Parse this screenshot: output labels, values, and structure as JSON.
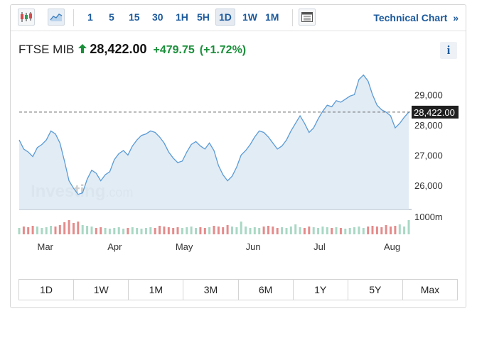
{
  "toolbar": {
    "icons": [
      "candlestick-icon",
      "area-chart-icon",
      "chart-settings-icon"
    ],
    "timeframes": [
      "1",
      "5",
      "15",
      "30",
      "1H",
      "5H",
      "1D",
      "1W",
      "1M"
    ],
    "active_timeframe": "1D",
    "technical_chart": "Technical Chart",
    "technical_chart_arrow": "»"
  },
  "quote": {
    "name": "FTSE MIB",
    "price": "28,422.00",
    "change": "+479.75",
    "change_pct": "(+1.72%)",
    "direction": "up",
    "info": "i"
  },
  "watermark": {
    "brand": "Investing",
    "suffix": ".com"
  },
  "colors": {
    "line": "#5b9bd5",
    "fill": "#dde9f3",
    "up": "#1a8f3a",
    "link": "#1c5a9c",
    "vol_green": "#a9d8c4",
    "vol_red": "#e58b8b"
  },
  "ranges": [
    "1D",
    "1W",
    "1M",
    "3M",
    "6M",
    "1Y",
    "5Y",
    "Max"
  ],
  "chart_data": {
    "type": "area",
    "instrument": "FTSE MIB",
    "x": [
      "2023-02-21",
      "2023-02-23",
      "2023-02-25",
      "2023-02-27",
      "2023-03-01",
      "2023-03-03",
      "2023-03-05",
      "2023-03-07",
      "2023-03-09",
      "2023-03-11",
      "2023-03-13",
      "2023-03-15",
      "2023-03-17",
      "2023-03-19",
      "2023-03-21",
      "2023-03-23",
      "2023-03-25",
      "2023-03-27",
      "2023-03-29",
      "2023-03-31",
      "2023-04-02",
      "2023-04-04",
      "2023-04-06",
      "2023-04-08",
      "2023-04-10",
      "2023-04-12",
      "2023-04-14",
      "2023-04-16",
      "2023-04-18",
      "2023-04-20",
      "2023-04-22",
      "2023-04-24",
      "2023-04-26",
      "2023-04-28",
      "2023-04-30",
      "2023-05-02",
      "2023-05-04",
      "2023-05-06",
      "2023-05-08",
      "2023-05-10",
      "2023-05-12",
      "2023-05-14",
      "2023-05-16",
      "2023-05-18",
      "2023-05-20",
      "2023-05-22",
      "2023-05-24",
      "2023-05-26",
      "2023-05-28",
      "2023-05-30",
      "2023-06-01",
      "2023-06-03",
      "2023-06-05",
      "2023-06-07",
      "2023-06-09",
      "2023-06-11",
      "2023-06-13",
      "2023-06-15",
      "2023-06-17",
      "2023-06-19",
      "2023-06-21",
      "2023-06-23",
      "2023-06-25",
      "2023-06-27",
      "2023-06-29",
      "2023-07-01",
      "2023-07-03",
      "2023-07-05",
      "2023-07-07",
      "2023-07-09",
      "2023-07-11",
      "2023-07-13",
      "2023-07-15",
      "2023-07-17",
      "2023-07-19",
      "2023-07-21",
      "2023-07-23",
      "2023-07-25",
      "2023-07-27",
      "2023-07-29",
      "2023-07-31",
      "2023-08-02",
      "2023-08-04",
      "2023-08-06",
      "2023-08-08",
      "2023-08-10",
      "2023-08-12"
    ],
    "values": [
      27500,
      27200,
      27100,
      26950,
      27250,
      27350,
      27500,
      27800,
      27700,
      27400,
      26800,
      26150,
      25900,
      25700,
      25750,
      26200,
      26500,
      26400,
      26150,
      26350,
      26450,
      26850,
      27050,
      27150,
      27000,
      27300,
      27500,
      27650,
      27700,
      27800,
      27750,
      27600,
      27400,
      27100,
      26900,
      26750,
      26800,
      27100,
      27350,
      27450,
      27300,
      27200,
      27400,
      27150,
      26650,
      26350,
      26150,
      26300,
      26600,
      27000,
      27150,
      27350,
      27600,
      27800,
      27750,
      27600,
      27400,
      27200,
      27300,
      27500,
      27800,
      28050,
      28300,
      28050,
      27750,
      27900,
      28200,
      28450,
      28650,
      28600,
      28800,
      28750,
      28850,
      28950,
      29000,
      29500,
      29650,
      29450,
      29000,
      28650,
      28500,
      28422,
      28300,
      27900,
      28050,
      28250,
      28422
    ],
    "last_price": 28422.0,
    "last_price_label": "28,422.00",
    "ylim": [
      25200,
      29900
    ],
    "y_ticks": [
      26000,
      27000,
      28000,
      29000
    ],
    "y_tick_labels": [
      "26,000",
      "27,000",
      "28,000",
      "29,000"
    ],
    "x_tick_labels": [
      "Mar",
      "Apr",
      "May",
      "Jun",
      "Jul",
      "Aug"
    ],
    "x_tick_dates": [
      "2023-03-01",
      "2023-04-01",
      "2023-05-01",
      "2023-06-01",
      "2023-07-01",
      "2023-08-01"
    ],
    "volume_label": "1000m",
    "volume": [
      {
        "v": 0.45,
        "d": "up"
      },
      {
        "v": 0.55,
        "d": "down"
      },
      {
        "v": 0.5,
        "d": "down"
      },
      {
        "v": 0.6,
        "d": "down"
      },
      {
        "v": 0.55,
        "d": "up"
      },
      {
        "v": 0.45,
        "d": "up"
      },
      {
        "v": 0.5,
        "d": "up"
      },
      {
        "v": 0.6,
        "d": "up"
      },
      {
        "v": 0.55,
        "d": "down"
      },
      {
        "v": 0.65,
        "d": "down"
      },
      {
        "v": 0.85,
        "d": "down"
      },
      {
        "v": 1.0,
        "d": "down"
      },
      {
        "v": 0.8,
        "d": "down"
      },
      {
        "v": 0.9,
        "d": "down"
      },
      {
        "v": 0.65,
        "d": "up"
      },
      {
        "v": 0.6,
        "d": "up"
      },
      {
        "v": 0.55,
        "d": "up"
      },
      {
        "v": 0.45,
        "d": "down"
      },
      {
        "v": 0.5,
        "d": "down"
      },
      {
        "v": 0.45,
        "d": "up"
      },
      {
        "v": 0.4,
        "d": "up"
      },
      {
        "v": 0.45,
        "d": "up"
      },
      {
        "v": 0.5,
        "d": "up"
      },
      {
        "v": 0.4,
        "d": "up"
      },
      {
        "v": 0.45,
        "d": "down"
      },
      {
        "v": 0.5,
        "d": "up"
      },
      {
        "v": 0.45,
        "d": "up"
      },
      {
        "v": 0.4,
        "d": "up"
      },
      {
        "v": 0.45,
        "d": "up"
      },
      {
        "v": 0.5,
        "d": "up"
      },
      {
        "v": 0.45,
        "d": "down"
      },
      {
        "v": 0.6,
        "d": "down"
      },
      {
        "v": 0.55,
        "d": "down"
      },
      {
        "v": 0.5,
        "d": "down"
      },
      {
        "v": 0.45,
        "d": "down"
      },
      {
        "v": 0.5,
        "d": "down"
      },
      {
        "v": 0.45,
        "d": "up"
      },
      {
        "v": 0.5,
        "d": "up"
      },
      {
        "v": 0.55,
        "d": "up"
      },
      {
        "v": 0.45,
        "d": "up"
      },
      {
        "v": 0.5,
        "d": "down"
      },
      {
        "v": 0.45,
        "d": "down"
      },
      {
        "v": 0.5,
        "d": "up"
      },
      {
        "v": 0.6,
        "d": "down"
      },
      {
        "v": 0.55,
        "d": "down"
      },
      {
        "v": 0.5,
        "d": "down"
      },
      {
        "v": 0.65,
        "d": "down"
      },
      {
        "v": 0.55,
        "d": "up"
      },
      {
        "v": 0.5,
        "d": "up"
      },
      {
        "v": 0.9,
        "d": "up"
      },
      {
        "v": 0.55,
        "d": "up"
      },
      {
        "v": 0.45,
        "d": "up"
      },
      {
        "v": 0.5,
        "d": "up"
      },
      {
        "v": 0.45,
        "d": "up"
      },
      {
        "v": 0.55,
        "d": "down"
      },
      {
        "v": 0.6,
        "d": "down"
      },
      {
        "v": 0.55,
        "d": "down"
      },
      {
        "v": 0.45,
        "d": "down"
      },
      {
        "v": 0.5,
        "d": "up"
      },
      {
        "v": 0.45,
        "d": "up"
      },
      {
        "v": 0.55,
        "d": "up"
      },
      {
        "v": 0.7,
        "d": "up"
      },
      {
        "v": 0.5,
        "d": "up"
      },
      {
        "v": 0.45,
        "d": "down"
      },
      {
        "v": 0.55,
        "d": "down"
      },
      {
        "v": 0.5,
        "d": "up"
      },
      {
        "v": 0.45,
        "d": "up"
      },
      {
        "v": 0.55,
        "d": "up"
      },
      {
        "v": 0.5,
        "d": "up"
      },
      {
        "v": 0.45,
        "d": "down"
      },
      {
        "v": 0.5,
        "d": "up"
      },
      {
        "v": 0.45,
        "d": "down"
      },
      {
        "v": 0.4,
        "d": "up"
      },
      {
        "v": 0.45,
        "d": "up"
      },
      {
        "v": 0.5,
        "d": "up"
      },
      {
        "v": 0.55,
        "d": "up"
      },
      {
        "v": 0.45,
        "d": "up"
      },
      {
        "v": 0.55,
        "d": "down"
      },
      {
        "v": 0.6,
        "d": "down"
      },
      {
        "v": 0.55,
        "d": "down"
      },
      {
        "v": 0.5,
        "d": "down"
      },
      {
        "v": 0.65,
        "d": "down"
      },
      {
        "v": 0.55,
        "d": "down"
      },
      {
        "v": 0.6,
        "d": "down"
      },
      {
        "v": 0.7,
        "d": "up"
      },
      {
        "v": 0.55,
        "d": "up"
      },
      {
        "v": 1.0,
        "d": "up"
      }
    ]
  }
}
